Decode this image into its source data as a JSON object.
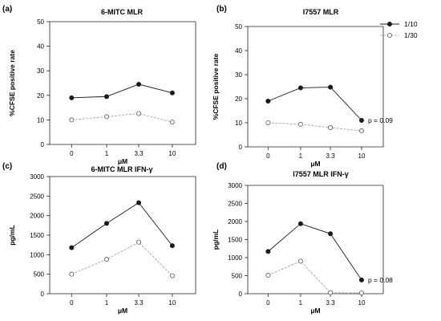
{
  "legend": {
    "items": [
      {
        "label": "1/10",
        "marker": "filled"
      },
      {
        "label": "1/30",
        "marker": "open"
      }
    ]
  },
  "colors": {
    "series_1_10": "#1a1a1a",
    "series_1_30": "#9a9a9a"
  },
  "chart_data": [
    {
      "panel": "(a)",
      "type": "line",
      "title": "6-MITC MLR",
      "xlabel": "μM",
      "ylabel": "%CFSE positive rate",
      "categories": [
        "0",
        "1",
        "3.3",
        "10"
      ],
      "ylim": [
        0,
        50
      ],
      "yticks": [
        0,
        10,
        20,
        30,
        40,
        50
      ],
      "series": [
        {
          "name": "1/10",
          "values": [
            19,
            19.5,
            24.5,
            21
          ]
        },
        {
          "name": "1/30",
          "values": [
            10,
            11.3,
            12.6,
            9.1
          ]
        }
      ],
      "annotation": ""
    },
    {
      "panel": "(b)",
      "type": "line",
      "title": "I7557 MLR",
      "xlabel": "μM",
      "ylabel": "%CFSE positive rate",
      "categories": [
        "0",
        "1",
        "3.3",
        "10"
      ],
      "ylim": [
        0,
        50
      ],
      "yticks": [
        0,
        10,
        20,
        30,
        40,
        50
      ],
      "series": [
        {
          "name": "1/10",
          "values": [
            19,
            24.5,
            24.8,
            11
          ]
        },
        {
          "name": "1/30",
          "values": [
            10,
            9.4,
            8,
            6.7
          ]
        }
      ],
      "annotation": "p = 0.09"
    },
    {
      "panel": "(c)",
      "type": "line",
      "title": "6-MITC MLR IFN-γ",
      "xlabel": "μM",
      "ylabel": "pg/mL",
      "categories": [
        "0",
        "1",
        "3.3",
        "10"
      ],
      "ylim": [
        0,
        3000
      ],
      "yticks": [
        0,
        500,
        1000,
        1500,
        2000,
        2500,
        3000
      ],
      "series": [
        {
          "name": "1/10",
          "values": [
            1180,
            1800,
            2330,
            1230
          ]
        },
        {
          "name": "1/30",
          "values": [
            500,
            880,
            1320,
            460
          ]
        }
      ],
      "annotation": ""
    },
    {
      "panel": "(d)",
      "type": "line",
      "title": "I7557 MLR IFN-γ",
      "xlabel": "μM",
      "ylabel": "pg/mL",
      "categories": [
        "0",
        "1",
        "3.3",
        "10"
      ],
      "ylim": [
        0,
        3000
      ],
      "yticks": [
        0,
        500,
        1000,
        1500,
        2000,
        2500,
        3000
      ],
      "series": [
        {
          "name": "1/10",
          "values": [
            1170,
            1940,
            1660,
            380
          ]
        },
        {
          "name": "1/30",
          "values": [
            510,
            900,
            30,
            20
          ]
        }
      ],
      "annotation": "p = 0.08"
    }
  ]
}
